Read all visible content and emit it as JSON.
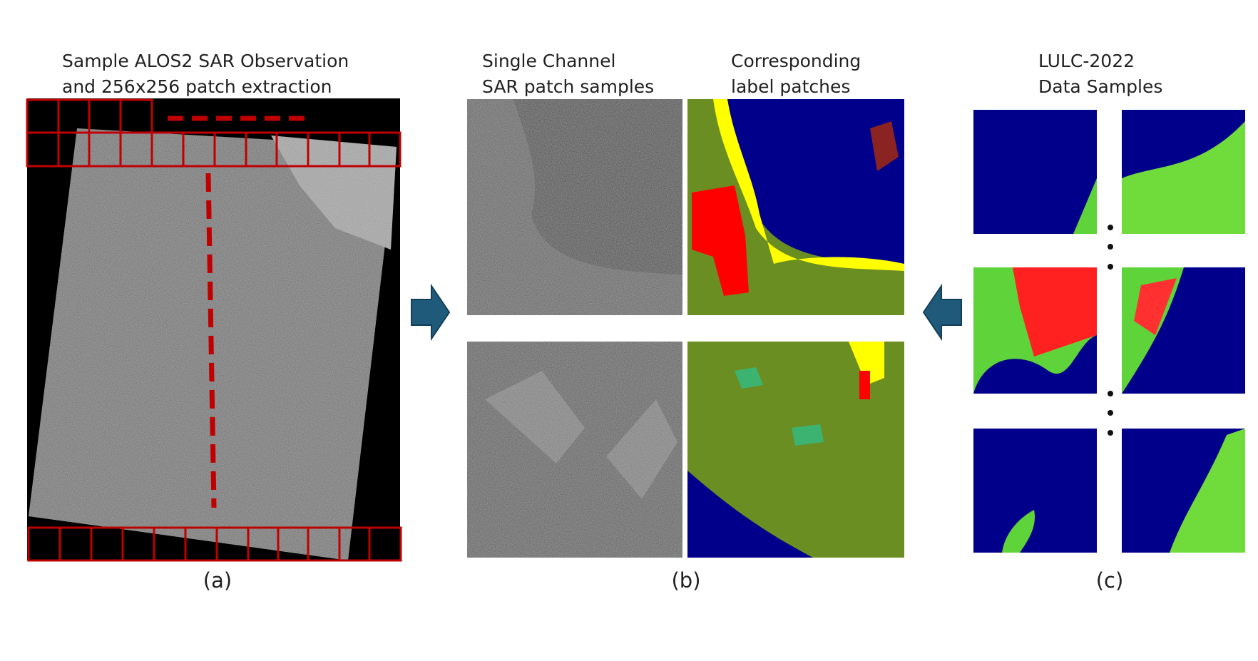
{
  "panels": [
    {
      "title": [
        "Sample ALOS2 SAR Observation",
        "and 256x256 patch extraction"
      ],
      "caption": "(a)"
    },
    {
      "columns": [
        {
          "title": [
            "Single Channel",
            "SAR patch samples"
          ]
        },
        {
          "title": [
            "Corresponding",
            "label patches"
          ]
        }
      ],
      "caption": "(b)"
    },
    {
      "title": [
        "LULC-2022",
        "Data Samples"
      ],
      "caption": "(c)"
    }
  ]
}
